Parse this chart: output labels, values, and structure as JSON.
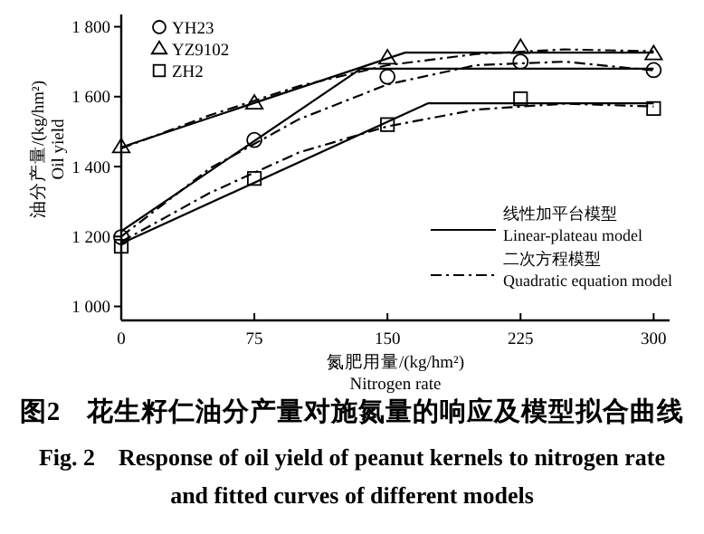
{
  "chart_data": {
    "type": "scatter",
    "xlabel": "氮肥用量/(kg/hm²)\nNitrogen rate",
    "ylabel": "油分产量/(kg/hm²)\nOil yield",
    "xlim": [
      0,
      309
    ],
    "xticks": [
      0,
      75,
      150,
      225,
      300
    ],
    "ylim": [
      960,
      1835
    ],
    "yticks": [
      {
        "value": 1000,
        "label": "1 000"
      },
      {
        "value": 1200,
        "label": "1 200"
      },
      {
        "value": 1400,
        "label": "1 400"
      },
      {
        "value": 1600,
        "label": "1 600"
      },
      {
        "value": 1800,
        "label": "1 800"
      }
    ],
    "legend": "top left",
    "grid": false,
    "series": [
      {
        "name": "YH23",
        "marker": "circle",
        "color": "#000000",
        "x": [
          0,
          75,
          150,
          225,
          300
        ],
        "values": [
          1198,
          1476,
          1657,
          1700,
          1676
        ]
      },
      {
        "name": "YZ9102",
        "marker": "triangle",
        "color": "#000000",
        "x": [
          0,
          75,
          150,
          225,
          300
        ],
        "values": [
          1456,
          1581,
          1710,
          1740,
          1722
        ]
      },
      {
        "name": "ZH2",
        "marker": "square",
        "color": "#000000",
        "x": [
          0,
          75,
          150,
          225,
          300
        ],
        "values": [
          1172,
          1366,
          1520,
          1594,
          1566
        ]
      },
      {
        "name": "线性加平台模型\nLinear-plateau model",
        "type": "line",
        "line_style": "solid",
        "color": "#000000",
        "x": [
          0,
          135,
          300
        ],
        "values": [
          1215,
          1680,
          1680
        ]
      },
      {
        "type": "line",
        "line_style": "solid",
        "color": "#000000",
        "x": [
          0,
          160,
          300
        ],
        "values": [
          1455,
          1726,
          1726
        ]
      },
      {
        "type": "line",
        "line_style": "solid",
        "color": "#000000",
        "x": [
          0,
          173,
          300
        ],
        "values": [
          1180,
          1581,
          1581
        ]
      },
      {
        "name": "二次方程模型\nQuadratic equation model",
        "type": "line",
        "line_style": "dashdot",
        "color": "#000000",
        "x": [
          0,
          50,
          100,
          150,
          200,
          250,
          300
        ],
        "values": [
          1200,
          1395,
          1535,
          1635,
          1690,
          1700,
          1675
        ]
      },
      {
        "type": "line",
        "line_style": "dashdot",
        "color": "#000000",
        "x": [
          0,
          50,
          100,
          150,
          200,
          250,
          300
        ],
        "values": [
          1452,
          1547,
          1630,
          1690,
          1722,
          1735,
          1730
        ]
      },
      {
        "type": "line",
        "line_style": "dashdot",
        "color": "#000000",
        "x": [
          0,
          50,
          100,
          150,
          200,
          250,
          300
        ],
        "values": [
          1185,
          1325,
          1440,
          1515,
          1563,
          1580,
          1572
        ]
      }
    ],
    "annotations": [
      "图2　花生籽仁油分产量对施氮量的响应及模型拟合曲线",
      "Fig. 2　Response of oil yield of peanut kernels to nitrogen rate and fitted curves of different models"
    ]
  }
}
